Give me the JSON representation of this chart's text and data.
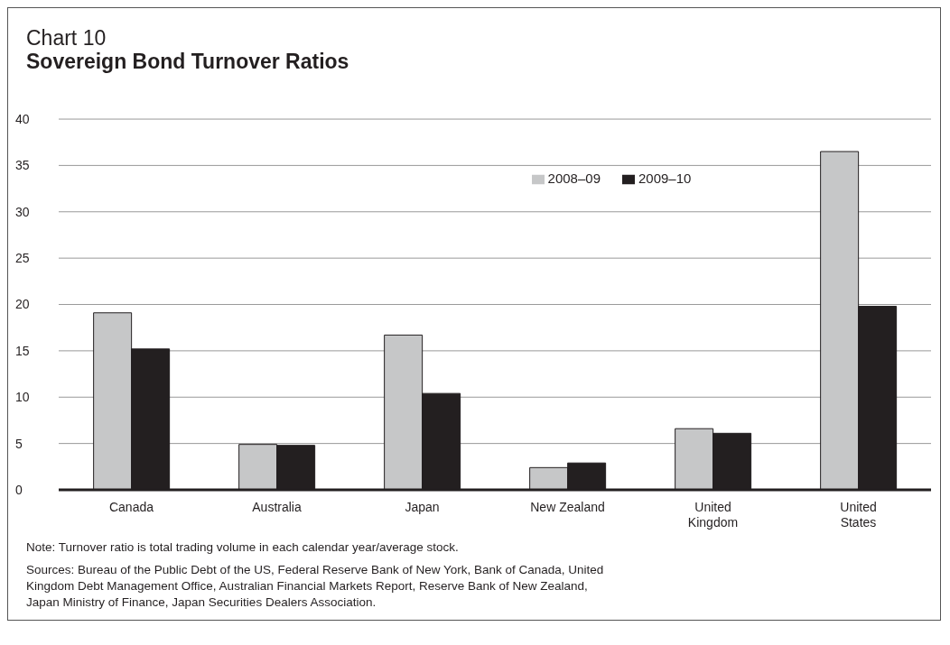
{
  "chart_data": {
    "type": "bar",
    "title": "Chart 10",
    "subtitle": "Sovereign Bond Turnover Ratios",
    "categories": [
      "Canada",
      "Australia",
      "Japan",
      "New Zealand",
      "United Kingdom",
      "United States"
    ],
    "series": [
      {
        "name": "2008–09",
        "color": "#c6c7c8",
        "values": [
          19.1,
          4.9,
          16.7,
          2.4,
          6.6,
          36.5
        ]
      },
      {
        "name": "2009–10",
        "color": "#231f20",
        "values": [
          15.2,
          4.8,
          10.4,
          2.9,
          6.1,
          19.8
        ]
      }
    ],
    "ylim": [
      0,
      40
    ],
    "yticks": [
      0,
      5,
      10,
      15,
      20,
      25,
      30,
      35,
      40
    ],
    "grid": "y",
    "legend": "top",
    "annotations": [
      "Note: Turnover ratio is total trading volume in each calendar year/average stock.",
      "Sources: Bureau of the Public Debt of the US, Federal Reserve Bank of New York, Bank of Canada, United Kingdom Debt Management Office, Australian Financial Markets Report, Reserve Bank of New Zealand, Japan Ministry of Finance, Japan Securities Dealers Association."
    ]
  }
}
